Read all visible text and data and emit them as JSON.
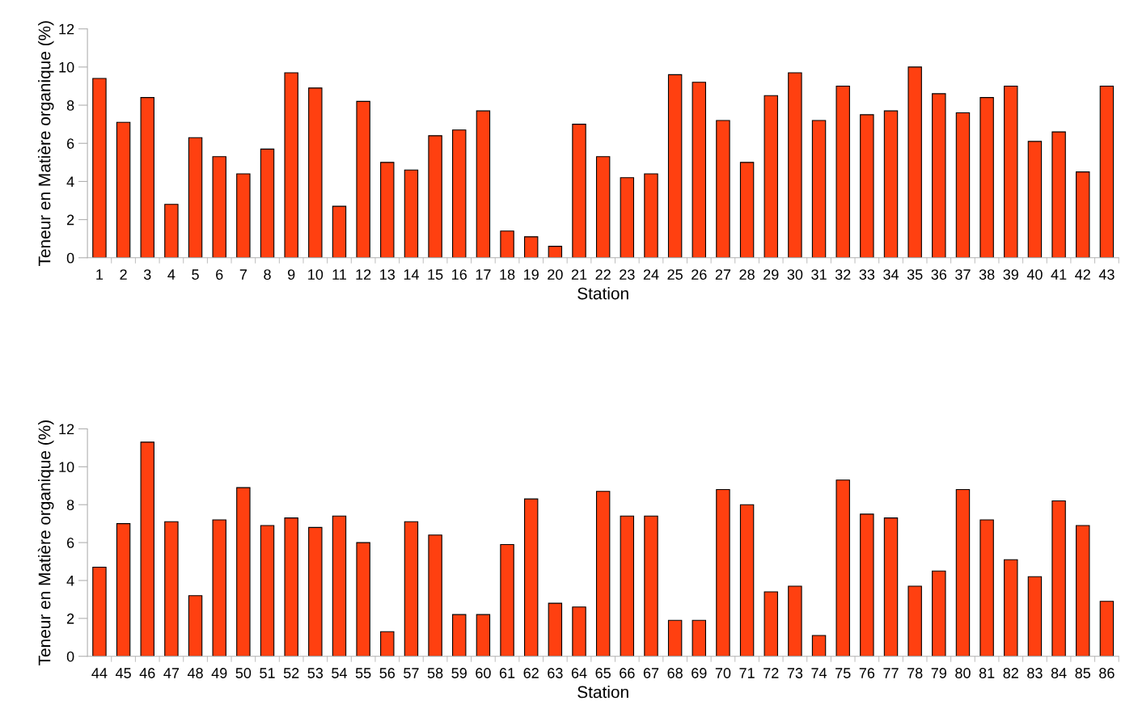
{
  "chart_data": [
    {
      "type": "bar",
      "xlabel": "Station",
      "ylabel": "Teneur en Matière organique (%)",
      "color": "#ff4010",
      "categories": [
        "1",
        "2",
        "3",
        "4",
        "5",
        "6",
        "7",
        "8",
        "9",
        "10",
        "11",
        "12",
        "13",
        "14",
        "15",
        "16",
        "17",
        "18",
        "19",
        "20",
        "21",
        "22",
        "23",
        "24",
        "25",
        "26",
        "27",
        "28",
        "29",
        "30",
        "31",
        "32",
        "33",
        "34",
        "35",
        "36",
        "37",
        "38",
        "39",
        "40",
        "41",
        "42",
        "43"
      ],
      "values": [
        9.4,
        7.1,
        8.4,
        2.8,
        6.3,
        5.3,
        4.4,
        5.7,
        9.7,
        8.9,
        2.7,
        8.2,
        5.0,
        4.6,
        6.4,
        6.7,
        7.7,
        1.4,
        1.1,
        0.6,
        7.0,
        5.3,
        4.2,
        4.4,
        9.6,
        9.2,
        7.2,
        5.0,
        8.5,
        9.7,
        7.2,
        9.0,
        7.5,
        7.7,
        10.0,
        8.6,
        7.6,
        8.4,
        9.0,
        6.1,
        6.6,
        4.5,
        9.0
      ],
      "ylim": [
        0,
        12
      ],
      "yticks": [
        0,
        2,
        4,
        6,
        8,
        10,
        12
      ],
      "grid": false
    },
    {
      "type": "bar",
      "xlabel": "Station",
      "ylabel": "Teneur en Matière organique (%)",
      "color": "#ff4010",
      "categories": [
        "44",
        "45",
        "46",
        "47",
        "48",
        "49",
        "50",
        "51",
        "52",
        "53",
        "54",
        "55",
        "56",
        "57",
        "58",
        "59",
        "60",
        "61",
        "62",
        "63",
        "64",
        "65",
        "66",
        "67",
        "68",
        "69",
        "70",
        "71",
        "72",
        "73",
        "74",
        "75",
        "76",
        "77",
        "78",
        "79",
        "80",
        "81",
        "82",
        "83",
        "84",
        "85",
        "86"
      ],
      "values": [
        4.7,
        7.0,
        11.3,
        7.1,
        3.2,
        7.2,
        8.9,
        6.9,
        7.3,
        6.8,
        7.4,
        6.0,
        1.3,
        7.1,
        6.4,
        2.2,
        2.2,
        5.9,
        8.3,
        2.8,
        2.6,
        8.7,
        7.4,
        7.4,
        1.9,
        1.9,
        8.8,
        8.0,
        3.4,
        3.7,
        1.1,
        9.3,
        7.5,
        7.3,
        3.7,
        4.5,
        8.8,
        7.2,
        5.1,
        4.2,
        8.2,
        6.9,
        2.9
      ],
      "ylim": [
        0,
        12
      ],
      "yticks": [
        0,
        2,
        4,
        6,
        8,
        10,
        12
      ],
      "grid": false
    }
  ]
}
